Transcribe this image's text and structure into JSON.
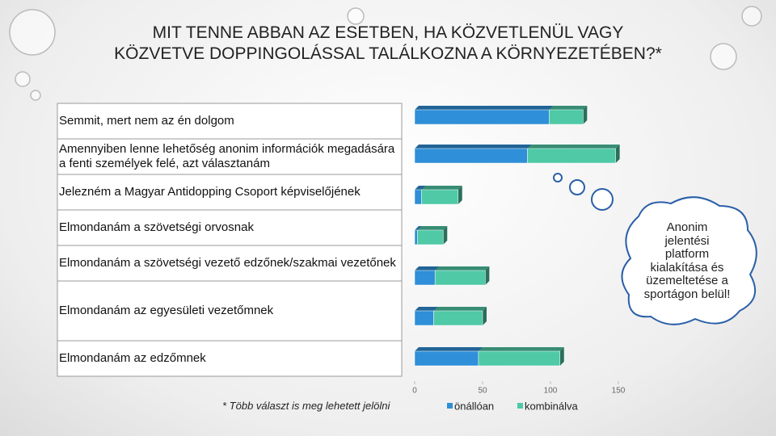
{
  "chart_data": {
    "type": "bar",
    "orientation": "horizontal",
    "stacked": true,
    "title": "MIT TENNE ABBAN AZ ESETBEN, HA KÖZVETLENÜL VAGY KÖZVETVE DOPPINGOLÁSSAL TALÁLKOZNA A KÖRNYEZETÉBEN?*",
    "categories": [
      "Semmit, mert nem az én dolgom",
      "Amennyiben lenne lehetőség anonim információk megadására a fenti személyek felé, azt választanám",
      "Jelezném a Magyar Antidopping Csoport képviselőjének",
      "Elmondanám a szövetségi orvosnak",
      "Elmondanám a szövetségi vezető edzőnek/szakmai vezetőnek",
      "Elmondanám az egyesületi vezetőmnek",
      "Elmondanám az edzőmnek"
    ],
    "series": [
      {
        "name": "önállóan",
        "color": "#2f8fd8",
        "values": [
          99,
          83,
          5,
          2,
          15,
          14,
          47
        ]
      },
      {
        "name": "kombinálva",
        "color": "#4fc9a6",
        "values": [
          25,
          65,
          27,
          19,
          37,
          36,
          60
        ]
      }
    ],
    "xlim": [
      0,
      150
    ],
    "xticks": [
      0,
      50,
      100,
      150
    ],
    "footnote": "* Több választ is meg lehetett jelölni",
    "annotation": [
      "Anonim",
      "jelentési",
      "platform",
      "kialakítása és",
      "üzemeltetése a",
      "sportágon belül!"
    ]
  }
}
